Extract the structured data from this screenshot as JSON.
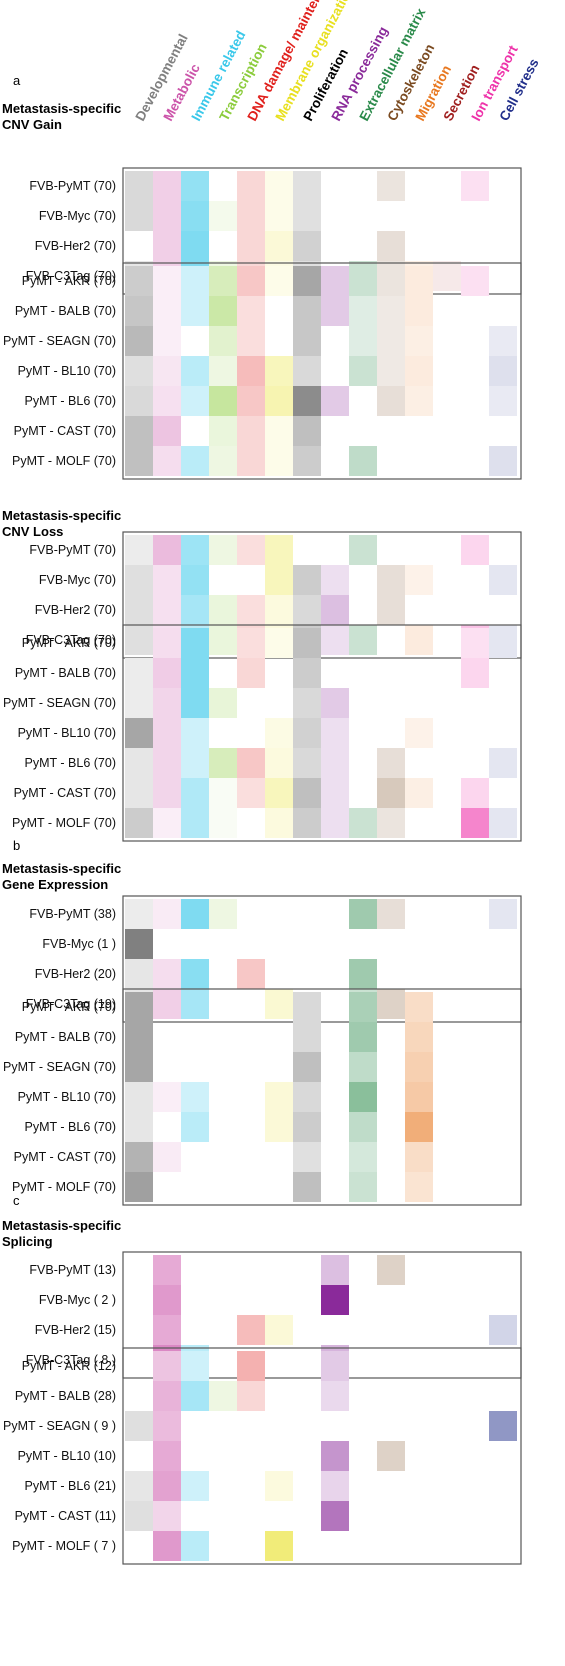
{
  "categories": [
    {
      "name": "Developmental",
      "color": "#808080"
    },
    {
      "name": "Metabolic",
      "color": "#cc55aa"
    },
    {
      "name": "Immune related",
      "color": "#3ac8ea"
    },
    {
      "name": "Transcription",
      "color": "#8ccc3c"
    },
    {
      "name": "DNA damage/ maintenance",
      "color": "#e0201c"
    },
    {
      "name": "Membrane organization",
      "color": "#e8e020"
    },
    {
      "name": "Proliferation",
      "color": "#000000"
    },
    {
      "name": "RNA processing",
      "color": "#8a2a9a"
    },
    {
      "name": "Extracellular matrix",
      "color": "#2a8a4a"
    },
    {
      "name": "Cytoskeleton",
      "color": "#7a4a20"
    },
    {
      "name": "Migration",
      "color": "#e87820"
    },
    {
      "name": "Secretion",
      "color": "#a02020"
    },
    {
      "name": "Ion transport",
      "color": "#ee33aa"
    },
    {
      "name": "Cell stress",
      "color": "#202e8a"
    }
  ],
  "chart_data": [
    {
      "type": "heatmap",
      "panel": "a",
      "title": "Metastasis-specific\nCNV Gain",
      "groups": [
        {
          "rows": [
            {
              "label": "FVB-PyMT (70)",
              "values": [
                0.3,
                0.28,
                0.55,
                0,
                0.18,
                0.1,
                0.12,
                0,
                0,
                0.15,
                0,
                0,
                0.15,
                0
              ]
            },
            {
              "label": "FVB-Myc (70)",
              "values": [
                0.3,
                0.28,
                0.6,
                0.1,
                0.18,
                0.1,
                0.12,
                0,
                0,
                0,
                0,
                0,
                0,
                0
              ]
            },
            {
              "label": "FVB-Her2 (70)",
              "values": [
                0,
                0.28,
                0.65,
                0,
                0.18,
                0.18,
                0.18,
                0,
                0,
                0.18,
                0,
                0,
                0,
                0
              ]
            },
            {
              "label": "FVB-C3Tag (70)",
              "values": [
                0.2,
                0.28,
                0.65,
                0.15,
                0.18,
                0.12,
                0.12,
                0,
                0.25,
                0.15,
                0.12,
                0.1,
                0,
                0
              ]
            }
          ]
        },
        {
          "rows": [
            {
              "label": "PyMT - AKR (70)",
              "values": [
                0.4,
                0.1,
                0.25,
                0.35,
                0.25,
                0.1,
                0.35,
                0.25,
                0.25,
                0.15,
                0.15,
                0,
                0.15,
                0
              ]
            },
            {
              "label": "PyMT - BALB (70)",
              "values": [
                0.45,
                0.1,
                0.25,
                0.45,
                0.15,
                0,
                0.22,
                0.25,
                0.15,
                0.12,
                0.15,
                0,
                0,
                0
              ]
            },
            {
              "label": "PyMT - SEAGN (70)",
              "values": [
                0.55,
                0.1,
                0,
                0.25,
                0.15,
                0,
                0.22,
                0,
                0.15,
                0.12,
                0.12,
                0,
                0,
                0.1
              ]
            },
            {
              "label": "PyMT - BL10 (70)",
              "values": [
                0.25,
                0.15,
                0.35,
                0.15,
                0.3,
                0.3,
                0.15,
                0,
                0.25,
                0.12,
                0.15,
                0,
                0,
                0.15
              ]
            },
            {
              "label": "PyMT - BL6 (70)",
              "values": [
                0.3,
                0.18,
                0.25,
                0.5,
                0.25,
                0.35,
                0.45,
                0.25,
                0,
                0.18,
                0.12,
                0,
                0,
                0.1
              ]
            },
            {
              "label": "PyMT - CAST (70)",
              "values": [
                0.5,
                0.35,
                0,
                0.18,
                0.18,
                0.1,
                0.25,
                0,
                0,
                0,
                0,
                0,
                0,
                0
              ]
            },
            {
              "label": "PyMT - MOLF (70)",
              "values": [
                0.5,
                0.2,
                0.35,
                0.15,
                0.18,
                0.1,
                0.2,
                0,
                0.3,
                0,
                0,
                0,
                0,
                0.15
              ]
            }
          ]
        }
      ]
    },
    {
      "type": "heatmap",
      "panel": "",
      "title": "Metastasis-specific\nCNV Loss",
      "groups": [
        {
          "rows": [
            {
              "label": "FVB-PyMT (70)",
              "values": [
                0.15,
                0.4,
                0.5,
                0.15,
                0.15,
                0.3,
                0,
                0,
                0.25,
                0,
                0,
                0,
                0.2,
                0
              ]
            },
            {
              "label": "FVB-Myc (70)",
              "values": [
                0.25,
                0.18,
                0.55,
                0,
                0,
                0.3,
                0.2,
                0.15,
                0,
                0.18,
                0.1,
                0,
                0,
                0.12
              ]
            },
            {
              "label": "FVB-Her2 (70)",
              "values": [
                0.25,
                0.18,
                0.45,
                0.18,
                0.15,
                0.15,
                0.15,
                0.3,
                0,
                0.18,
                0,
                0,
                0,
                0
              ]
            },
            {
              "label": "FVB-C3Tag (70)",
              "values": [
                0.25,
                0.18,
                0.35,
                0.18,
                0.18,
                0.15,
                0.2,
                0.15,
                0.25,
                0,
                0.15,
                0,
                0.3,
                0.12
              ]
            }
          ]
        },
        {
          "rows": [
            {
              "label": "PyMT - AKR (70)",
              "values": [
                0,
                0.2,
                0.65,
                0,
                0.15,
                0.1,
                0.25,
                0,
                0,
                0,
                0,
                0,
                0.15,
                0.12
              ]
            },
            {
              "label": "PyMT - BALB (70)",
              "values": [
                0.15,
                0.3,
                0.65,
                0,
                0.18,
                0,
                0.2,
                0,
                0,
                0,
                0,
                0,
                0.2,
                0
              ]
            },
            {
              "label": "PyMT - SEAGN (70)",
              "values": [
                0.15,
                0.25,
                0.65,
                0.2,
                0,
                0,
                0.15,
                0.25,
                0,
                0,
                0,
                0,
                0,
                0
              ]
            },
            {
              "label": "PyMT - BL10 (70)",
              "values": [
                0.7,
                0.25,
                0.25,
                0,
                0,
                0.12,
                0.18,
                0.15,
                0,
                0,
                0.1,
                0,
                0,
                0
              ]
            },
            {
              "label": "PyMT - BL6 (70)",
              "values": [
                0.2,
                0.25,
                0.25,
                0.35,
                0.25,
                0.15,
                0.15,
                0.15,
                0,
                0.18,
                0,
                0,
                0,
                0.12
              ]
            },
            {
              "label": "PyMT - CAST (70)",
              "values": [
                0.2,
                0.25,
                0.4,
                0.05,
                0.15,
                0.3,
                0.25,
                0.15,
                0,
                0.3,
                0.12,
                0,
                0.2,
                0
              ]
            },
            {
              "label": "PyMT - MOLF (70)",
              "values": [
                0.4,
                0.1,
                0.4,
                0.05,
                0,
                0.15,
                0.2,
                0.15,
                0.25,
                0.15,
                0,
                0,
                0.6,
                0.12
              ]
            }
          ]
        }
      ]
    },
    {
      "type": "heatmap",
      "panel": "b",
      "title": "Metastasis-specific\nGene Expression",
      "groups": [
        {
          "rows": [
            {
              "label": "FVB-PyMT (38)",
              "values": [
                0.15,
                0.12,
                0.65,
                0.15,
                0,
                0,
                0,
                0,
                0.45,
                0.18,
                0,
                0,
                0,
                0.12
              ]
            },
            {
              "label": "FVB-Myc (1  )",
              "values": [
                1.0,
                0,
                0,
                0,
                0,
                0,
                0,
                0,
                0,
                0,
                0,
                0,
                0,
                0
              ]
            },
            {
              "label": "FVB-Her2 (20)",
              "values": [
                0.2,
                0.2,
                0.6,
                0,
                0.25,
                0,
                0,
                0,
                0.45,
                0,
                0,
                0,
                0,
                0
              ]
            },
            {
              "label": "FVB-C3Tag (19)",
              "values": [
                0.2,
                0.28,
                0.45,
                0,
                0,
                0.2,
                0,
                0,
                0.25,
                0.25,
                0,
                0,
                0,
                0
              ]
            }
          ]
        },
        {
          "rows": [
            {
              "label": "PyMT - AKR (70)",
              "values": [
                0.7,
                0,
                0,
                0,
                0,
                0,
                0.15,
                0,
                0.4,
                0,
                0.25,
                0,
                0,
                0
              ]
            },
            {
              "label": "PyMT - BALB (70)",
              "values": [
                0.7,
                0,
                0,
                0,
                0,
                0,
                0.15,
                0,
                0.45,
                0,
                0.3,
                0,
                0,
                0
              ]
            },
            {
              "label": "PyMT - SEAGN (70)",
              "values": [
                0.7,
                0,
                0,
                0,
                0,
                0,
                0.25,
                0,
                0.3,
                0,
                0.35,
                0,
                0,
                0
              ]
            },
            {
              "label": "PyMT - BL10 (70)",
              "values": [
                0.2,
                0.1,
                0.25,
                0,
                0,
                0.18,
                0.15,
                0,
                0.55,
                0,
                0.4,
                0,
                0,
                0
              ]
            },
            {
              "label": "PyMT - BL6 (70)",
              "values": [
                0.2,
                0,
                0.35,
                0,
                0,
                0.18,
                0.2,
                0,
                0.3,
                0,
                0.6,
                0,
                0,
                0
              ]
            },
            {
              "label": "PyMT - CAST (70)",
              "values": [
                0.6,
                0.12,
                0,
                0,
                0,
                0,
                0.12,
                0,
                0.2,
                0,
                0.25,
                0,
                0,
                0
              ]
            },
            {
              "label": "PyMT - MOLF (70)",
              "values": [
                0.75,
                0,
                0,
                0,
                0,
                0,
                0.25,
                0,
                0.25,
                0,
                0.2,
                0,
                0,
                0
              ]
            }
          ]
        }
      ]
    },
    {
      "type": "heatmap",
      "panel": "c",
      "title": "Metastasis-specific\nSplicing",
      "groups": [
        {
          "rows": [
            {
              "label": "FVB-PyMT (13)",
              "values": [
                0,
                0.5,
                0,
                0,
                0,
                0,
                0,
                0.3,
                0,
                0.25,
                0,
                0,
                0,
                0
              ]
            },
            {
              "label": "FVB-Myc ( 2 )",
              "values": [
                0,
                0.6,
                0,
                0,
                0,
                0,
                0,
                1.0,
                0,
                0,
                0,
                0,
                0,
                0
              ]
            },
            {
              "label": "FVB-Her2 (15)",
              "values": [
                0,
                0.5,
                0,
                0,
                0.3,
                0.18,
                0,
                0,
                0,
                0,
                0,
                0,
                0,
                0.2
              ]
            },
            {
              "label": "FVB-C3Tag ( 8 )",
              "values": [
                0,
                0.7,
                0.35,
                0,
                0,
                0,
                0,
                0.35,
                0,
                0,
                0,
                0,
                0,
                0
              ]
            }
          ]
        },
        {
          "rows": [
            {
              "label": "PyMT - AKR (12)",
              "values": [
                0,
                0.35,
                0.25,
                0,
                0.35,
                0,
                0,
                0.25,
                0,
                0,
                0,
                0,
                0,
                0
              ]
            },
            {
              "label": "PyMT - BALB (28)",
              "values": [
                0,
                0.45,
                0.45,
                0.15,
                0.18,
                0,
                0,
                0.18,
                0,
                0,
                0,
                0,
                0,
                0
              ]
            },
            {
              "label": "PyMT - SEAGN ( 9 )",
              "values": [
                0.25,
                0.4,
                0,
                0,
                0,
                0,
                0,
                0,
                0,
                0,
                0,
                0,
                0,
                0.5
              ]
            },
            {
              "label": "PyMT - BL10 (10)",
              "values": [
                0,
                0.5,
                0,
                0,
                0,
                0,
                0,
                0.5,
                0,
                0.25,
                0,
                0,
                0,
                0
              ]
            },
            {
              "label": "PyMT - BL6 (21)",
              "values": [
                0.2,
                0.55,
                0.25,
                0,
                0,
                0.15,
                0,
                0.2,
                0,
                0,
                0,
                0,
                0,
                0
              ]
            },
            {
              "label": "PyMT - CAST (11)",
              "values": [
                0.25,
                0.25,
                0,
                0,
                0,
                0,
                0,
                0.65,
                0,
                0,
                0,
                0,
                0,
                0
              ]
            },
            {
              "label": "PyMT - MOLF ( 7 )",
              "values": [
                0,
                0.6,
                0.35,
                0,
                0,
                0.6,
                0,
                0,
                0,
                0,
                0,
                0,
                0,
                0
              ]
            }
          ]
        }
      ]
    }
  ]
}
